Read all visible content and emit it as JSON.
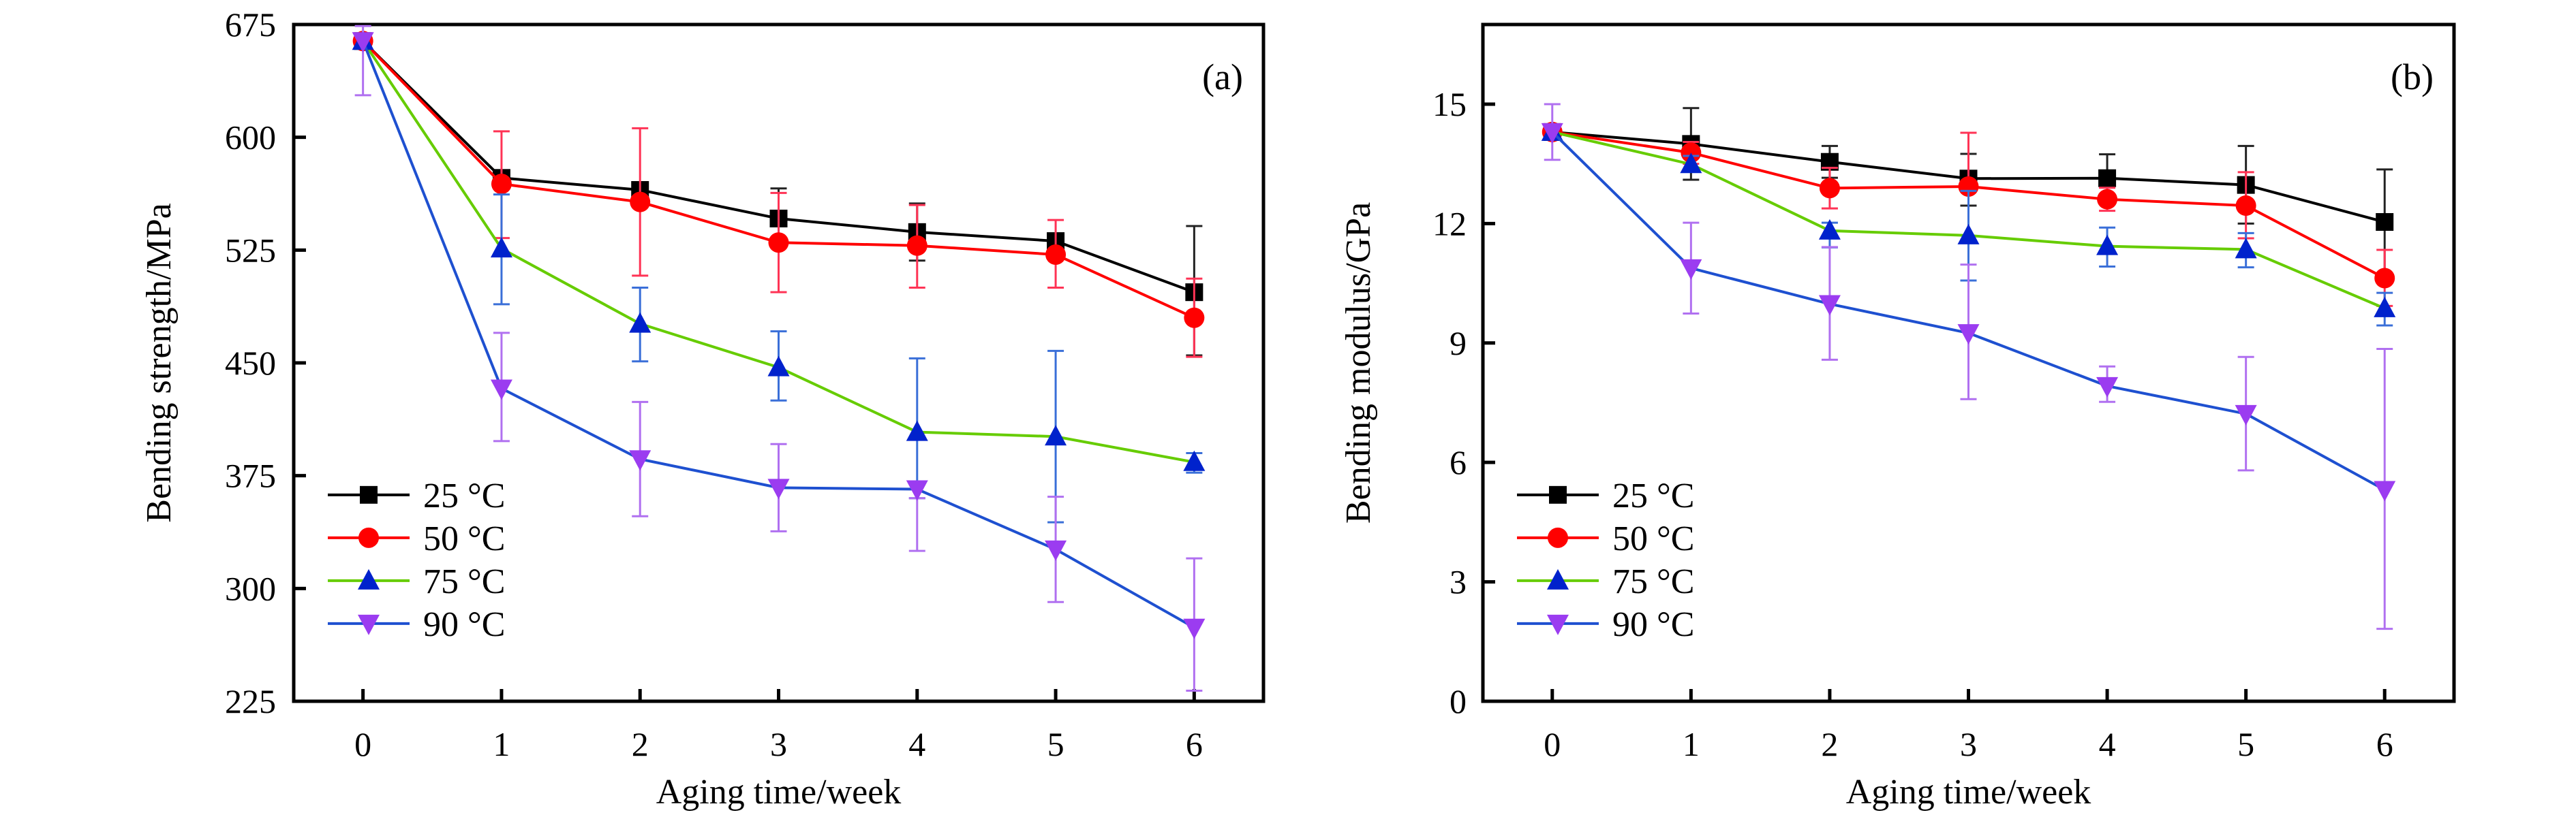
{
  "chart_data": [
    {
      "type": "line",
      "panel_label": "(a)",
      "title": "",
      "xlabel": "Aging time/week",
      "ylabel": "Bending strength/MPa",
      "x": [
        0,
        1,
        2,
        3,
        4,
        5,
        6
      ],
      "xticks": [
        "0",
        "1",
        "2",
        "3",
        "4",
        "5",
        "6"
      ],
      "xlim": [
        -0.5,
        6.5
      ],
      "ylim": [
        225,
        675
      ],
      "yticks": [
        225,
        300,
        375,
        450,
        525,
        600,
        675
      ],
      "legend_position": "bottom-left",
      "series": [
        {
          "name": "25 °C",
          "line_color": "#000000",
          "marker_color": "#000000",
          "marker": "square",
          "values": [
            664,
            573,
            565,
            546,
            537,
            531,
            497
          ],
          "error_low": [
            664,
            570,
            563,
            543,
            518,
            528,
            455
          ],
          "error_high": [
            664,
            575,
            568,
            566,
            556,
            533,
            541
          ]
        },
        {
          "name": "50 °C",
          "line_color": "#ff0000",
          "marker_color": "#ff0000",
          "marker": "circle",
          "values": [
            664,
            569,
            557,
            530,
            528,
            522,
            480
          ],
          "error_low": [
            664,
            533,
            508,
            497,
            500,
            500,
            454
          ],
          "error_high": [
            664,
            604,
            606,
            563,
            555,
            545,
            506
          ]
        },
        {
          "name": "75 °C",
          "line_color": "#66cc00",
          "marker_color": "#0022cc",
          "marker": "triangle-up",
          "values": [
            664,
            526,
            476,
            447,
            404,
            401,
            384
          ],
          "error_low": [
            664,
            489,
            451,
            425,
            360,
            344,
            377
          ],
          "error_high": [
            664,
            562,
            500,
            471,
            453,
            458,
            390
          ]
        },
        {
          "name": "90 °C",
          "line_color": "#1e50d0",
          "marker_color": "#9b3cf0",
          "marker": "triangle-down",
          "values": [
            664,
            433,
            386,
            367,
            366,
            326,
            274
          ],
          "error_low": [
            628,
            398,
            348,
            338,
            325,
            291,
            232
          ],
          "error_high": [
            674,
            470,
            424,
            396,
            360,
            361,
            320
          ]
        }
      ]
    },
    {
      "type": "line",
      "panel_label": "(b)",
      "title": "",
      "xlabel": "Aging time/week",
      "ylabel": "Bending modulus/GPa",
      "x": [
        0,
        1,
        2,
        3,
        4,
        5,
        6
      ],
      "xticks": [
        "0",
        "1",
        "2",
        "3",
        "4",
        "5",
        "6"
      ],
      "xlim": [
        -0.5,
        6.5
      ],
      "ylim": [
        0,
        17
      ],
      "yticks": [
        0,
        3,
        6,
        9,
        12,
        15
      ],
      "legend_position": "bottom-left",
      "series": [
        {
          "name": "25 °C",
          "line_color": "#000000",
          "marker_color": "#000000",
          "marker": "square",
          "values": [
            14.3,
            14.0,
            13.55,
            13.13,
            13.14,
            12.97,
            12.04
          ],
          "error_low": [
            14.3,
            13.1,
            13.15,
            12.45,
            12.54,
            12.0,
            10.75
          ],
          "error_high": [
            14.3,
            14.9,
            13.95,
            13.75,
            13.74,
            13.95,
            13.36
          ]
        },
        {
          "name": "50 °C",
          "line_color": "#ff0000",
          "marker_color": "#ff0000",
          "marker": "circle",
          "values": [
            14.3,
            13.78,
            12.89,
            12.93,
            12.61,
            12.45,
            10.63
          ],
          "error_low": [
            14.3,
            13.5,
            12.38,
            11.56,
            12.32,
            11.63,
            9.93
          ],
          "error_high": [
            14.3,
            14.05,
            13.4,
            14.28,
            12.9,
            13.29,
            11.34
          ]
        },
        {
          "name": "75 °C",
          "line_color": "#66cc00",
          "marker_color": "#0022cc",
          "marker": "triangle-up",
          "values": [
            14.3,
            13.49,
            11.82,
            11.7,
            11.43,
            11.35,
            9.87
          ],
          "error_low": [
            14.3,
            13.3,
            11.4,
            10.57,
            10.92,
            10.9,
            9.44
          ],
          "error_high": [
            14.3,
            13.7,
            12.02,
            12.82,
            11.9,
            11.76,
            10.26
          ]
        },
        {
          "name": "90 °C",
          "line_color": "#1e50d0",
          "marker_color": "#9b3cf0",
          "marker": "triangle-down",
          "values": [
            14.3,
            10.88,
            9.98,
            9.25,
            7.92,
            7.22,
            5.31
          ],
          "error_low": [
            13.6,
            9.74,
            8.58,
            7.59,
            7.52,
            5.8,
            1.82
          ],
          "error_high": [
            15.0,
            12.02,
            11.41,
            10.97,
            8.41,
            8.65,
            8.85
          ]
        }
      ]
    }
  ]
}
